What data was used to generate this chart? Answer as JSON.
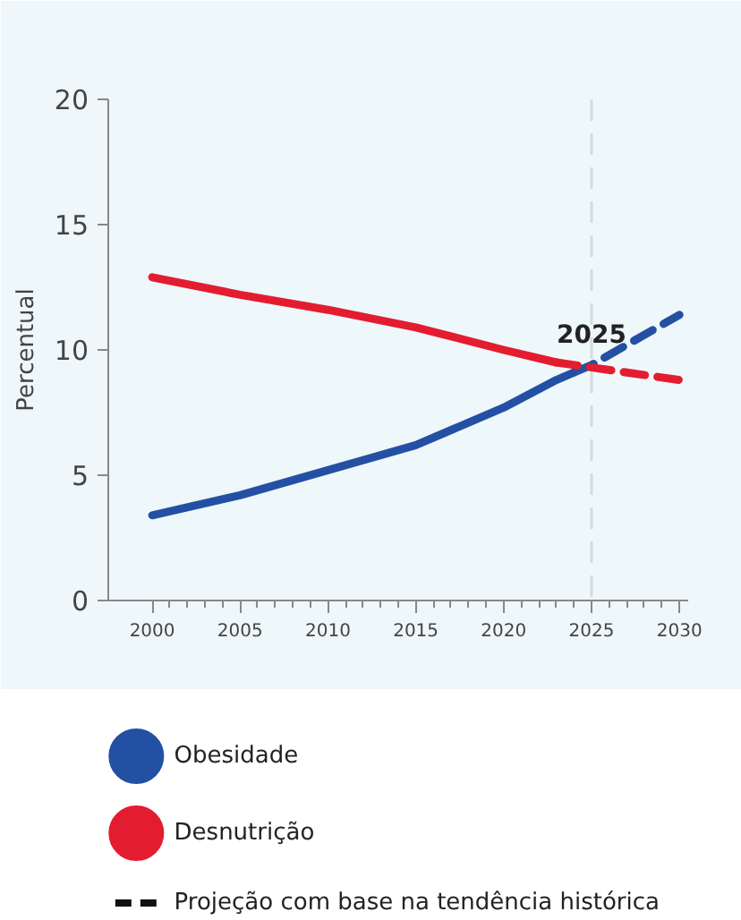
{
  "chart_data": {
    "type": "line",
    "ylabel": "Percentual",
    "xlim": [
      1997.5,
      2030.5
    ],
    "xticks": [
      2000,
      2005,
      2010,
      2015,
      2020,
      2025,
      2030
    ],
    "ylim": [
      0,
      20
    ],
    "yticks": [
      0,
      5,
      10,
      15,
      20
    ],
    "grid": false,
    "legend": "bottom",
    "series": [
      {
        "name": "Obesidade",
        "color": "#2450a4",
        "line_style": "solid",
        "x": [
          2000,
          2005,
          2010,
          2015,
          2020,
          2023,
          2024
        ],
        "values": [
          3.4,
          4.2,
          5.2,
          6.2,
          7.7,
          8.8,
          9.1
        ]
      },
      {
        "color": "#2450a4",
        "line_style": "dashed",
        "x": [
          2024,
          2025,
          2030
        ],
        "values": [
          9.1,
          9.4,
          11.4
        ]
      },
      {
        "name": "Desnutrição",
        "color": "#e31d2f",
        "line_style": "solid",
        "x": [
          2000,
          2005,
          2010,
          2015,
          2020,
          2023
        ],
        "values": [
          12.9,
          12.2,
          11.6,
          10.9,
          10.0,
          9.5
        ]
      },
      {
        "color": "#e31d2f",
        "line_style": "dashed",
        "x": [
          2023,
          2025,
          2030
        ],
        "values": [
          9.5,
          9.3,
          8.8
        ]
      }
    ],
    "ref_lines": [
      {
        "axis": "x",
        "value": 2025,
        "label": "2025",
        "color": "#d5dadd",
        "line_style": "dashed"
      }
    ],
    "annotations": [
      "Projeção com base na tendência histórica"
    ]
  }
}
